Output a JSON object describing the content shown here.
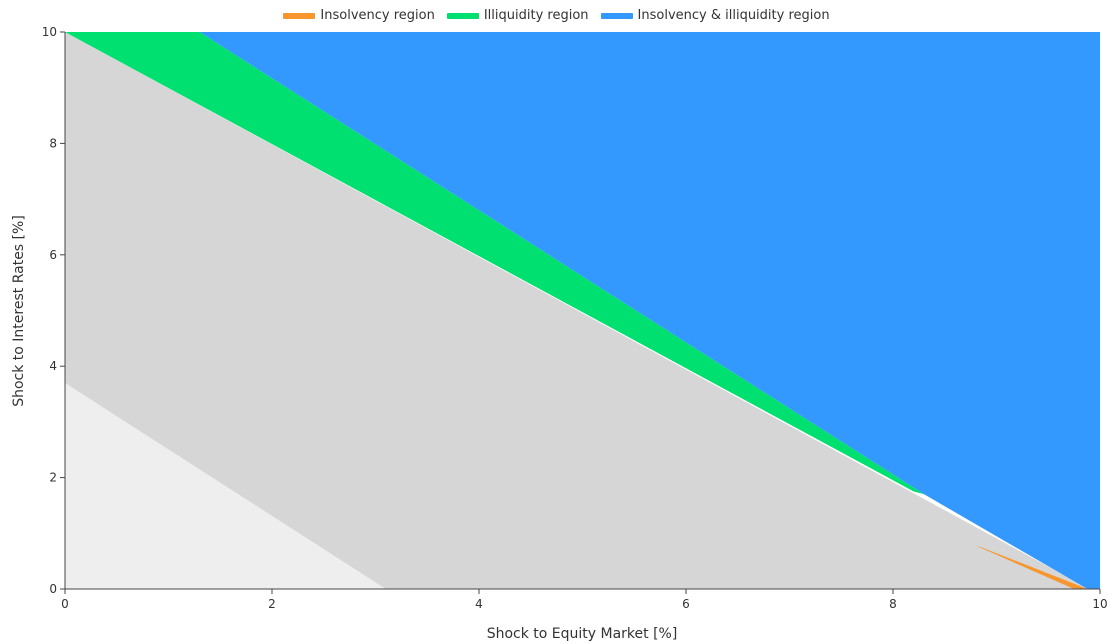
{
  "chart_data": {
    "type": "area",
    "xlabel": "Shock to Equity Market [%]",
    "ylabel": "Shock to Interest Rates [%]",
    "xlim": [
      0,
      10
    ],
    "ylim": [
      0,
      10
    ],
    "xticks": [
      "0",
      "2",
      "4",
      "6",
      "8",
      "10"
    ],
    "yticks": [
      "0",
      "2",
      "4",
      "6",
      "8",
      "10"
    ],
    "grid": false,
    "legend_position": "top-center",
    "legend": [
      {
        "name": "Insolvency region",
        "color": "#f7952e"
      },
      {
        "name": "Illiquidity region",
        "color": "#00e070"
      },
      {
        "name": "Insolvency & illiquidity region",
        "color": "#3399ff"
      }
    ],
    "background_regions": [
      {
        "color": "#eeeeee",
        "boundary_x": [
          0,
          3.1
        ],
        "boundary_y": [
          3.7,
          0
        ]
      },
      {
        "color": "#d6d6d6",
        "boundary_x": [
          0,
          9.9
        ],
        "boundary_y": [
          10,
          0
        ]
      }
    ],
    "regions": [
      {
        "name": "Illiquidity region",
        "color": "#00e070",
        "polygon": [
          [
            0,
            10
          ],
          [
            1.3,
            10
          ],
          [
            8.3,
            1.7
          ],
          [
            8.2,
            1.75
          ],
          [
            0,
            10
          ]
        ]
      },
      {
        "name": "Insolvency & illiquidity region",
        "color": "#3399ff",
        "polygon": [
          [
            1.3,
            10
          ],
          [
            10,
            10
          ],
          [
            10,
            0
          ],
          [
            9.88,
            0
          ],
          [
            8.3,
            1.7
          ]
        ]
      },
      {
        "name": "Insolvency region",
        "color": "#f7952e",
        "polygon": [
          [
            8.85,
            0.75
          ],
          [
            9.88,
            0
          ],
          [
            9.75,
            0
          ],
          [
            8.8,
            0.78
          ]
        ]
      }
    ]
  }
}
